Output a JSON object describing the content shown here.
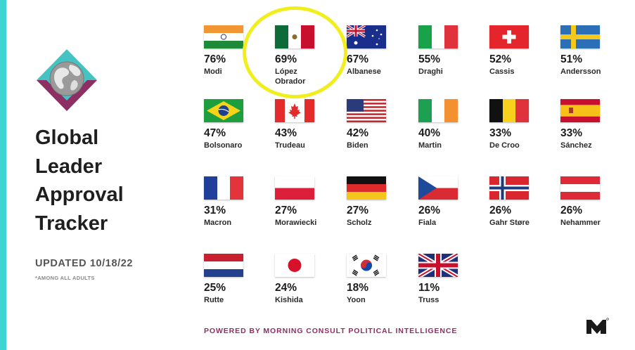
{
  "title_lines": [
    "Global",
    "Leader",
    "Approval",
    "Tracker"
  ],
  "updated": "UPDATED 10/18/22",
  "note": "*AMONG ALL ADULTS",
  "footer": "POWERED BY MORNING CONSULT POLITICAL INTELLIGENCE",
  "colors": {
    "accent_teal": "#3dd4d4",
    "brand_purple": "#8d2f63",
    "highlight_yellow": "#f0ee1d"
  },
  "leaders": [
    {
      "percent": "76%",
      "name": "Modi",
      "flag": "india-flag"
    },
    {
      "percent": "69%",
      "name": "López\nObrador",
      "flag": "mexico-flag"
    },
    {
      "percent": "67%",
      "name": "Albanese",
      "flag": "australia-flag"
    },
    {
      "percent": "55%",
      "name": "Draghi",
      "flag": "italy-flag"
    },
    {
      "percent": "52%",
      "name": "Cassis",
      "flag": "switzerland-flag"
    },
    {
      "percent": "51%",
      "name": "Andersson",
      "flag": "sweden-flag"
    },
    {
      "percent": "47%",
      "name": "Bolsonaro",
      "flag": "brazil-flag"
    },
    {
      "percent": "43%",
      "name": "Trudeau",
      "flag": "canada-flag"
    },
    {
      "percent": "42%",
      "name": "Biden",
      "flag": "usa-flag"
    },
    {
      "percent": "40%",
      "name": "Martin",
      "flag": "ireland-flag"
    },
    {
      "percent": "33%",
      "name": "De Croo",
      "flag": "belgium-flag"
    },
    {
      "percent": "33%",
      "name": "Sánchez",
      "flag": "spain-flag"
    },
    {
      "percent": "31%",
      "name": "Macron",
      "flag": "france-flag"
    },
    {
      "percent": "27%",
      "name": "Morawiecki",
      "flag": "poland-flag"
    },
    {
      "percent": "27%",
      "name": "Scholz",
      "flag": "germany-flag"
    },
    {
      "percent": "26%",
      "name": "Fiala",
      "flag": "czechia-flag"
    },
    {
      "percent": "26%",
      "name": "Gahr Støre",
      "flag": "norway-flag"
    },
    {
      "percent": "26%",
      "name": "Nehammer",
      "flag": "austria-flag"
    },
    {
      "percent": "25%",
      "name": "Rutte",
      "flag": "netherlands-flag"
    },
    {
      "percent": "24%",
      "name": "Kishida",
      "flag": "japan-flag"
    },
    {
      "percent": "18%",
      "name": "Yoon",
      "flag": "south-korea-flag"
    },
    {
      "percent": "11%",
      "name": "Truss",
      "flag": "uk-flag"
    }
  ]
}
